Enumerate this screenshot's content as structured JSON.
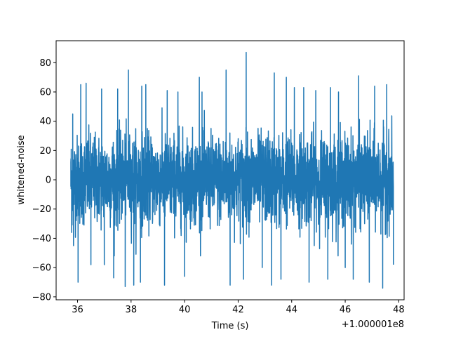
{
  "chart_data": {
    "type": "line",
    "title": "",
    "xlabel": "Time (s)",
    "ylabel": "whitened-noise",
    "x_offset_label": "+1.000001e8",
    "xlim": [
      35.2,
      48.2
    ],
    "ylim": [
      -82,
      95
    ],
    "x_ticks": [
      36,
      38,
      40,
      42,
      44,
      46,
      48
    ],
    "x_tick_labels": [
      "36",
      "38",
      "40",
      "42",
      "44",
      "46",
      "48"
    ],
    "y_ticks": [
      -80,
      -60,
      -40,
      -20,
      0,
      20,
      40,
      60,
      80
    ],
    "y_tick_labels": [
      "−80",
      "−60",
      "−40",
      "−20",
      "0",
      "20",
      "40",
      "60",
      "80"
    ],
    "grid": false,
    "legend": "none",
    "series": [
      {
        "color": "#1f77b4",
        "x_range": [
          35.75,
          47.8
        ],
        "values": [
          {
            "x": 35.75,
            "y": 12
          },
          {
            "x": 35.78,
            "y": -36
          },
          {
            "x": 35.82,
            "y": 45
          },
          {
            "x": 35.85,
            "y": -45
          },
          {
            "x": 36.02,
            "y": -70
          },
          {
            "x": 36.12,
            "y": 65
          },
          {
            "x": 36.32,
            "y": 66
          },
          {
            "x": 36.5,
            "y": -58
          },
          {
            "x": 36.9,
            "y": 62
          },
          {
            "x": 37.0,
            "y": -58
          },
          {
            "x": 37.35,
            "y": -67
          },
          {
            "x": 37.5,
            "y": 62
          },
          {
            "x": 37.78,
            "y": -73
          },
          {
            "x": 37.9,
            "y": 75
          },
          {
            "x": 38.1,
            "y": -72
          },
          {
            "x": 38.35,
            "y": -70
          },
          {
            "x": 38.4,
            "y": 64
          },
          {
            "x": 38.55,
            "y": 65
          },
          {
            "x": 39.25,
            "y": -72
          },
          {
            "x": 39.35,
            "y": 61
          },
          {
            "x": 39.75,
            "y": 60
          },
          {
            "x": 40.0,
            "y": -66
          },
          {
            "x": 40.55,
            "y": 70
          },
          {
            "x": 40.65,
            "y": 60
          },
          {
            "x": 41.55,
            "y": 75
          },
          {
            "x": 41.7,
            "y": -72
          },
          {
            "x": 42.2,
            "y": -68
          },
          {
            "x": 42.3,
            "y": 87
          },
          {
            "x": 42.9,
            "y": -60
          },
          {
            "x": 43.25,
            "y": -72
          },
          {
            "x": 43.35,
            "y": 73
          },
          {
            "x": 43.6,
            "y": -68
          },
          {
            "x": 43.8,
            "y": 70
          },
          {
            "x": 44.1,
            "y": 63
          },
          {
            "x": 44.45,
            "y": 63
          },
          {
            "x": 44.65,
            "y": -70
          },
          {
            "x": 44.9,
            "y": 61
          },
          {
            "x": 45.35,
            "y": -68
          },
          {
            "x": 45.45,
            "y": 63
          },
          {
            "x": 45.75,
            "y": 60
          },
          {
            "x": 46.0,
            "y": -60
          },
          {
            "x": 46.3,
            "y": -68
          },
          {
            "x": 46.5,
            "y": 71
          },
          {
            "x": 46.9,
            "y": -70
          },
          {
            "x": 47.1,
            "y": 64
          },
          {
            "x": 47.4,
            "y": -74
          },
          {
            "x": 47.55,
            "y": 65
          },
          {
            "x": 47.8,
            "y": -58
          }
        ]
      }
    ]
  }
}
